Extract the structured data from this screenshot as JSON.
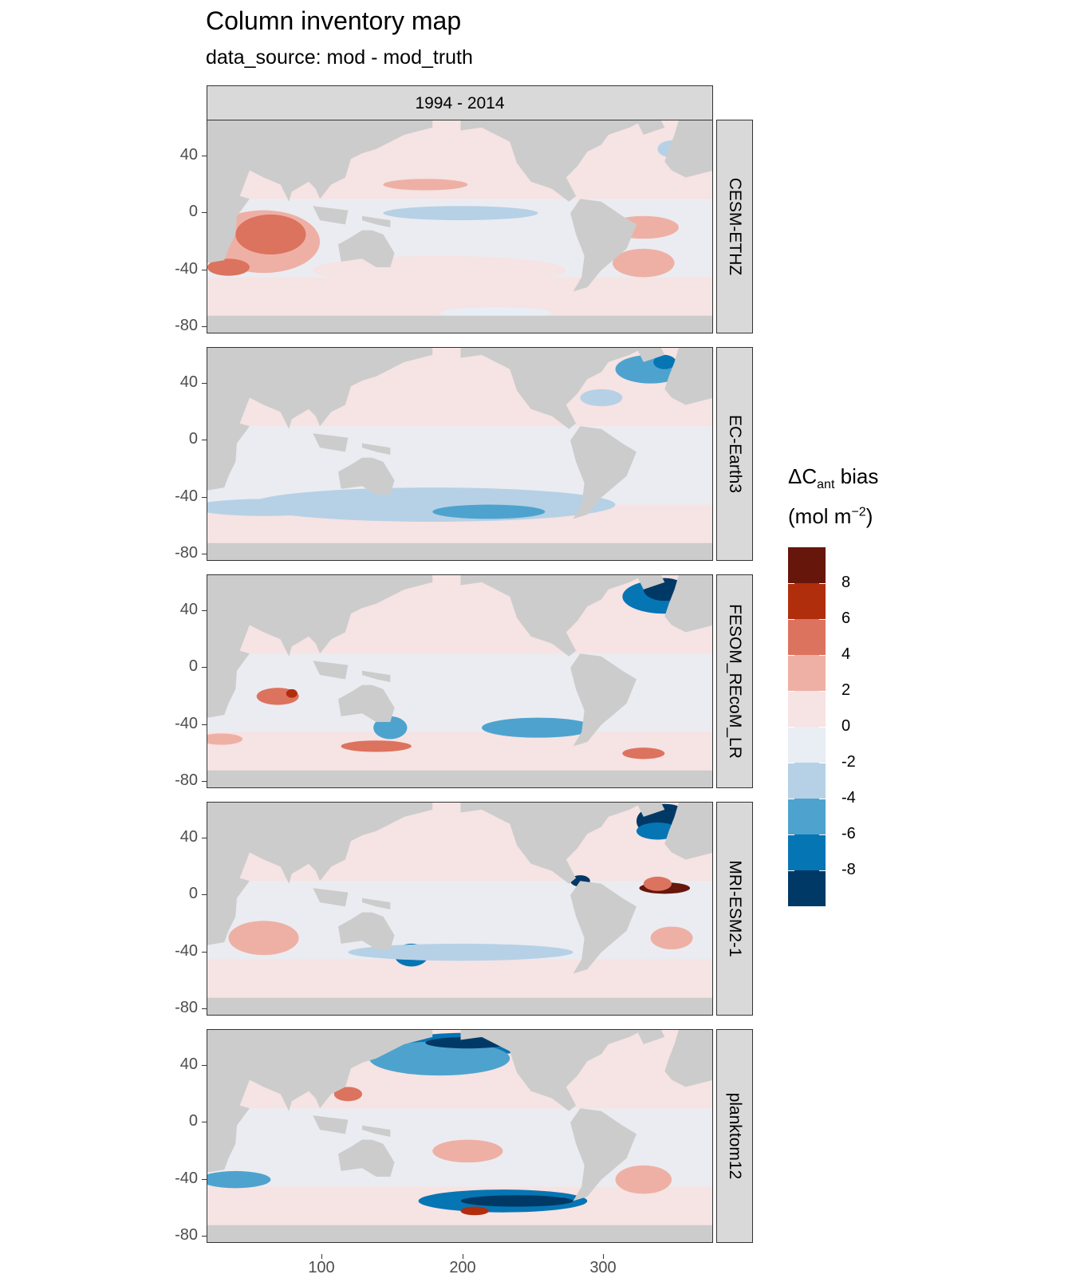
{
  "chart_data": {
    "type": "heatmap",
    "title": "Column inventory map",
    "subtitle": "data_source: mod - mod_truth",
    "facet_column": "1994 - 2014",
    "facet_rows": [
      "CESM-ETHZ",
      "EC-Earth3",
      "FESOM_REcoM_LR",
      "MRI-ESM2-1",
      "planktom12"
    ],
    "y_ticks": [
      "40",
      "0",
      "-40",
      "-80"
    ],
    "x_ticks": [
      "100",
      "200",
      "300"
    ],
    "legend": {
      "title_main": "ΔC",
      "title_sub": "ant",
      "title_rest": " bias",
      "unit_prefix": "(mol m",
      "unit_sup": "−2",
      "unit_suffix": ")",
      "labels": [
        "8",
        "6",
        "4",
        "2",
        "0",
        "-2",
        "-4",
        "-6",
        "-8"
      ],
      "colors": [
        "#67160b",
        "#b12e0c",
        "#dc735e",
        "#eeb0a5",
        "#f6e3e3",
        "#e8eef4",
        "#b6d1e6",
        "#4ea3ce",
        "#0675b4",
        "#003966"
      ],
      "placement": "right"
    },
    "land_color": "#cccccc",
    "x_range": [
      20,
      380
    ],
    "y_range": [
      -85,
      65
    ]
  }
}
